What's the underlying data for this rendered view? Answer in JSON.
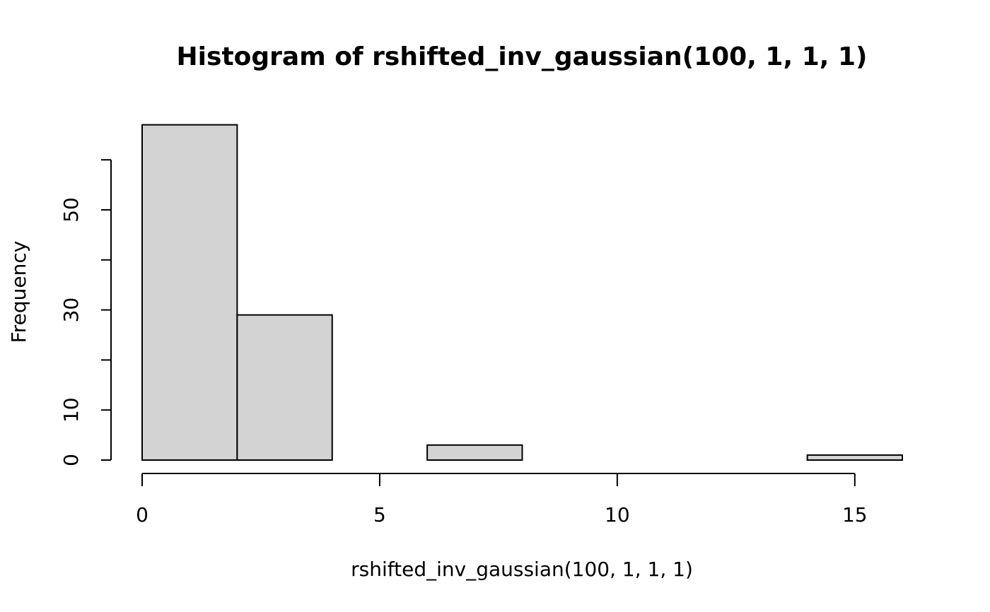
{
  "chart_data": {
    "type": "histogram",
    "title": "Histogram of rshifted_inv_gaussian(100, 1, 1, 1)",
    "x_label": "rshifted_inv_gaussian(100, 1, 1, 1)",
    "y_label": "Frequency",
    "bins": [
      0,
      2,
      4,
      6,
      8,
      10,
      12,
      14,
      16
    ],
    "values": [
      67,
      29,
      0,
      3,
      0,
      0,
      0,
      1
    ],
    "color": "#d3d3d3",
    "xlim": [
      0,
      16
    ],
    "xticks": [
      0,
      5,
      10,
      15
    ],
    "ylim": [
      0,
      67
    ],
    "yticks": [
      0,
      10,
      {
        "value": 20,
        "label": null
      },
      30,
      {
        "value": 40,
        "label": null
      },
      50,
      {
        "value": 60,
        "label": null
      }
    ]
  }
}
